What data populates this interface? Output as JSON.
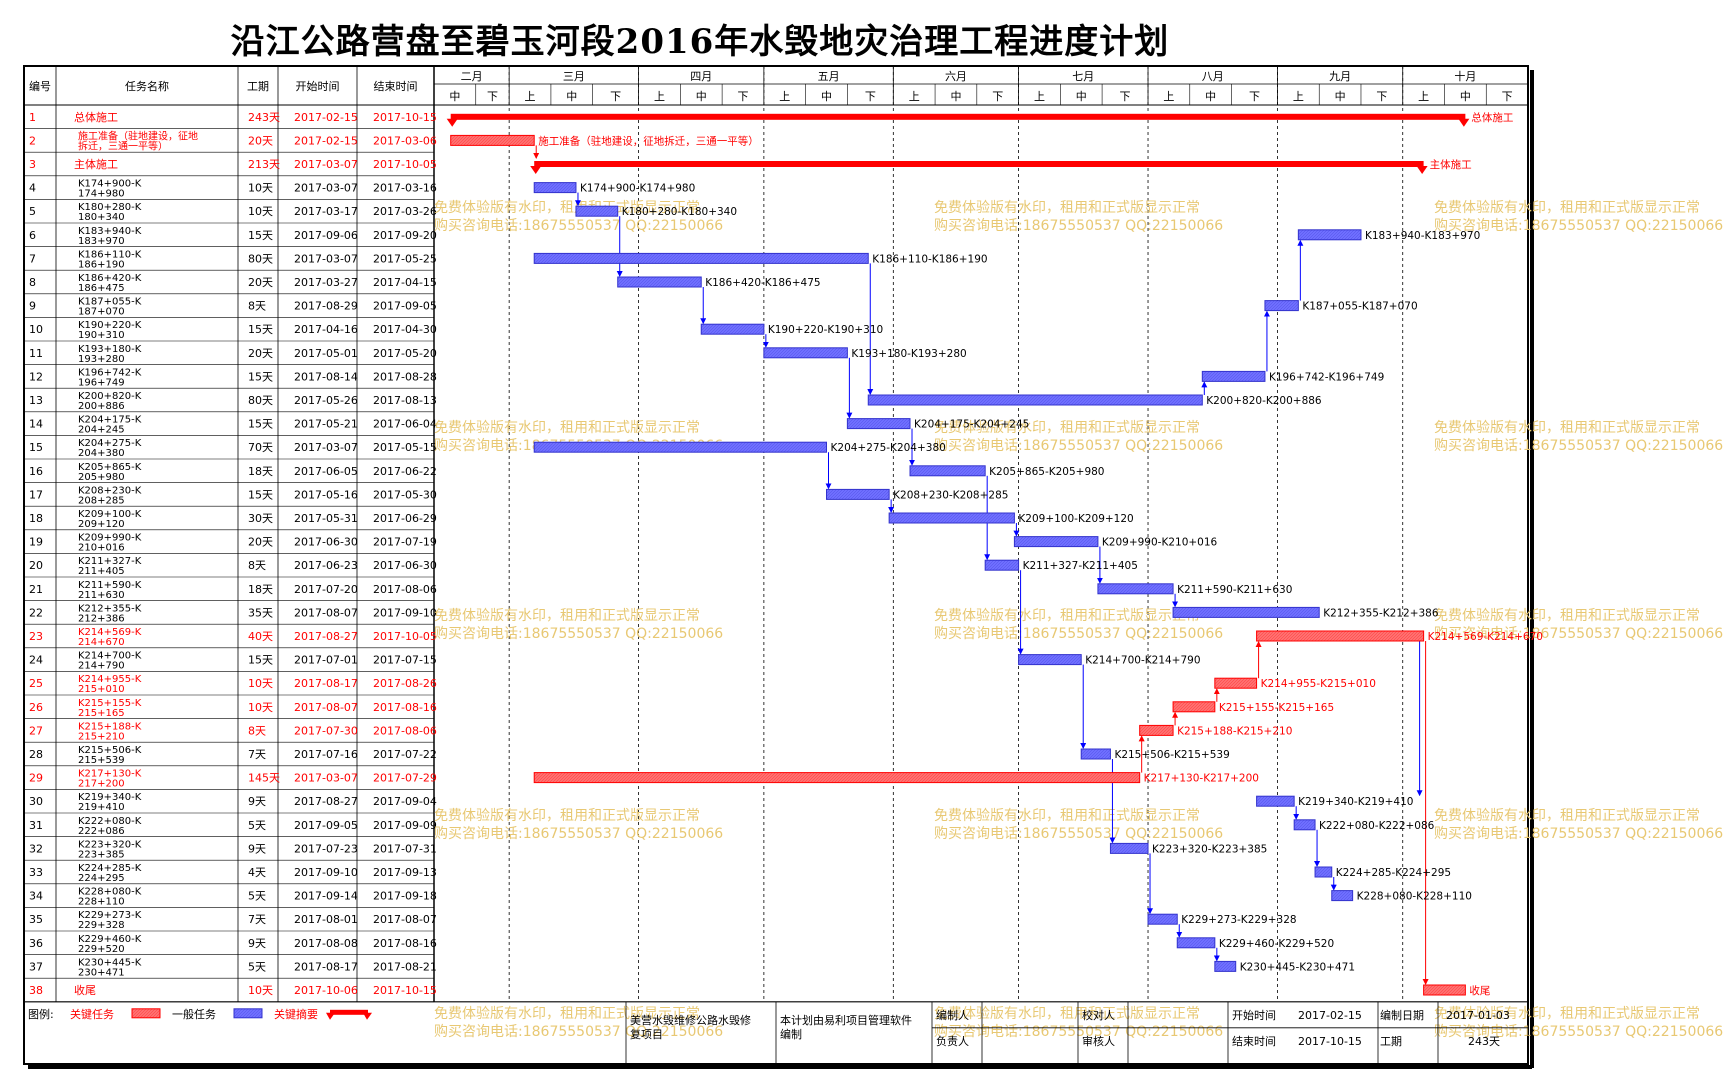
{
  "title": "沿江公路营盘至碧玉河段2016年水毁地灾治理工程进度计划",
  "headers": {
    "id": "编号",
    "name": "任务名称",
    "duration": "工期",
    "start": "开始时间",
    "end": "结束时间"
  },
  "months": [
    {
      "name": "二月",
      "thirds": [
        "中",
        "下"
      ]
    },
    {
      "name": "三月",
      "thirds": [
        "上",
        "中",
        "下"
      ]
    },
    {
      "name": "四月",
      "thirds": [
        "上",
        "中",
        "下"
      ]
    },
    {
      "name": "五月",
      "thirds": [
        "上",
        "中",
        "下"
      ]
    },
    {
      "name": "六月",
      "thirds": [
        "上",
        "中",
        "下"
      ]
    },
    {
      "name": "七月",
      "thirds": [
        "上",
        "中",
        "下"
      ]
    },
    {
      "name": "八月",
      "thirds": [
        "上",
        "中",
        "下"
      ]
    },
    {
      "name": "九月",
      "thirds": [
        "上",
        "中",
        "下"
      ]
    },
    {
      "name": "十月",
      "thirds": [
        "上",
        "中",
        "下"
      ]
    }
  ],
  "colors": {
    "critical": "#ff0000",
    "critical_fill": "#ff7070",
    "normal": "#3333cc",
    "normal_fill": "#6f6fff",
    "summary": "#ff0000",
    "link": "#0000ff",
    "watermark": "#e8c873"
  },
  "chart_data": {
    "type": "gantt",
    "x_range": [
      "2017-02-11",
      "2017-10-31"
    ],
    "tasks": [
      {
        "id": "1",
        "name": "总体施工",
        "duration": "243天",
        "start": "2017-02-15",
        "end": "2017-10-15",
        "kind": "summary",
        "label": "总体施工"
      },
      {
        "id": "2",
        "name": "施工准备（驻地建设，征地拆迁，三通一平等）",
        "duration": "20天",
        "start": "2017-02-15",
        "end": "2017-03-06",
        "kind": "critical",
        "label": "施工准备（驻地建设，征地拆迁，三通一平等）"
      },
      {
        "id": "3",
        "name": "主体施工",
        "duration": "213天",
        "start": "2017-03-07",
        "end": "2017-10-05",
        "kind": "summary",
        "label": "主体施工"
      },
      {
        "id": "4",
        "name": "K174+900-K174+980",
        "duration": "10天",
        "start": "2017-03-07",
        "end": "2017-03-16",
        "kind": "normal",
        "label": "K174+900-K174+980"
      },
      {
        "id": "5",
        "name": "K180+280-K180+340",
        "duration": "10天",
        "start": "2017-03-17",
        "end": "2017-03-26",
        "kind": "normal",
        "label": "K180+280-K180+340"
      },
      {
        "id": "6",
        "name": "K183+940-K183+970",
        "duration": "15天",
        "start": "2017-09-06",
        "end": "2017-09-20",
        "kind": "normal",
        "label": "K183+940-K183+970"
      },
      {
        "id": "7",
        "name": "K186+110-K186+190",
        "duration": "80天",
        "start": "2017-03-07",
        "end": "2017-05-25",
        "kind": "normal",
        "label": "K186+110-K186+190"
      },
      {
        "id": "8",
        "name": "K186+420-K186+475",
        "duration": "20天",
        "start": "2017-03-27",
        "end": "2017-04-15",
        "kind": "normal",
        "label": "K186+420-K186+475"
      },
      {
        "id": "9",
        "name": "K187+055-K187+070",
        "duration": "8天",
        "start": "2017-08-29",
        "end": "2017-09-05",
        "kind": "normal",
        "label": "K187+055-K187+070"
      },
      {
        "id": "10",
        "name": "K190+220-K190+310",
        "duration": "15天",
        "start": "2017-04-16",
        "end": "2017-04-30",
        "kind": "normal",
        "label": "K190+220-K190+310"
      },
      {
        "id": "11",
        "name": "K193+180-K193+280",
        "duration": "20天",
        "start": "2017-05-01",
        "end": "2017-05-20",
        "kind": "normal",
        "label": "K193+180-K193+280"
      },
      {
        "id": "12",
        "name": "K196+742-K196+749",
        "duration": "15天",
        "start": "2017-08-14",
        "end": "2017-08-28",
        "kind": "normal",
        "label": "K196+742-K196+749"
      },
      {
        "id": "13",
        "name": "K200+820-K200+886",
        "duration": "80天",
        "start": "2017-05-26",
        "end": "2017-08-13",
        "kind": "normal",
        "label": "K200+820-K200+886"
      },
      {
        "id": "14",
        "name": "K204+175-K204+245",
        "duration": "15天",
        "start": "2017-05-21",
        "end": "2017-06-04",
        "kind": "normal",
        "label": "K204+175-K204+245"
      },
      {
        "id": "15",
        "name": "K204+275-K204+380",
        "duration": "70天",
        "start": "2017-03-07",
        "end": "2017-05-15",
        "kind": "normal",
        "label": "K204+275-K204+380"
      },
      {
        "id": "16",
        "name": "K205+865-K205+980",
        "duration": "18天",
        "start": "2017-06-05",
        "end": "2017-06-22",
        "kind": "normal",
        "label": "K205+865-K205+980"
      },
      {
        "id": "17",
        "name": "K208+230-K208+285",
        "duration": "15天",
        "start": "2017-05-16",
        "end": "2017-05-30",
        "kind": "normal",
        "label": "K208+230-K208+285"
      },
      {
        "id": "18",
        "name": "K209+100-K209+120",
        "duration": "30天",
        "start": "2017-05-31",
        "end": "2017-06-29",
        "kind": "normal",
        "label": "K209+100-K209+120"
      },
      {
        "id": "19",
        "name": "K209+990-K210+016",
        "duration": "20天",
        "start": "2017-06-30",
        "end": "2017-07-19",
        "kind": "normal",
        "label": "K209+990-K210+016"
      },
      {
        "id": "20",
        "name": "K211+327-K211+405",
        "duration": "8天",
        "start": "2017-06-23",
        "end": "2017-06-30",
        "kind": "normal",
        "label": "K211+327-K211+405"
      },
      {
        "id": "21",
        "name": "K211+590-K211+630",
        "duration": "18天",
        "start": "2017-07-20",
        "end": "2017-08-06",
        "kind": "normal",
        "label": "K211+590-K211+630"
      },
      {
        "id": "22",
        "name": "K212+355-K212+386",
        "duration": "35天",
        "start": "2017-08-07",
        "end": "2017-09-10",
        "kind": "normal",
        "label": "K212+355-K212+386"
      },
      {
        "id": "23",
        "name": "K214+569-K214+670",
        "duration": "40天",
        "start": "2017-08-27",
        "end": "2017-10-05",
        "kind": "critical",
        "label": "K214+569-K214+670"
      },
      {
        "id": "24",
        "name": "K214+700-K214+790",
        "duration": "15天",
        "start": "2017-07-01",
        "end": "2017-07-15",
        "kind": "normal",
        "label": "K214+700-K214+790"
      },
      {
        "id": "25",
        "name": "K214+955-K215+010",
        "duration": "10天",
        "start": "2017-08-17",
        "end": "2017-08-26",
        "kind": "critical",
        "label": "K214+955-K215+010"
      },
      {
        "id": "26",
        "name": "K215+155-K215+165",
        "duration": "10天",
        "start": "2017-08-07",
        "end": "2017-08-16",
        "kind": "critical",
        "label": "K215+155-K215+165"
      },
      {
        "id": "27",
        "name": "K215+188-K215+210",
        "duration": "8天",
        "start": "2017-07-30",
        "end": "2017-08-06",
        "kind": "critical",
        "label": "K215+188-K215+210"
      },
      {
        "id": "28",
        "name": "K215+506-K215+539",
        "duration": "7天",
        "start": "2017-07-16",
        "end": "2017-07-22",
        "kind": "normal",
        "label": "K215+506-K215+539"
      },
      {
        "id": "29",
        "name": "K217+130-K217+200",
        "duration": "145天",
        "start": "2017-03-07",
        "end": "2017-07-29",
        "kind": "critical",
        "label": "K217+130-K217+200"
      },
      {
        "id": "30",
        "name": "K219+340-K219+410",
        "duration": "9天",
        "start": "2017-08-27",
        "end": "2017-09-04",
        "kind": "normal",
        "label": "K219+340-K219+410"
      },
      {
        "id": "31",
        "name": "K222+080-K222+086",
        "duration": "5天",
        "start": "2017-09-05",
        "end": "2017-09-09",
        "kind": "normal",
        "label": "K222+080-K222+086"
      },
      {
        "id": "32",
        "name": "K223+320-K223+385",
        "duration": "9天",
        "start": "2017-07-23",
        "end": "2017-07-31",
        "kind": "normal",
        "label": "K223+320-K223+385"
      },
      {
        "id": "33",
        "name": "K224+285-K224+295",
        "duration": "4天",
        "start": "2017-09-10",
        "end": "2017-09-13",
        "kind": "normal",
        "label": "K224+285-K224+295"
      },
      {
        "id": "34",
        "name": "K228+080-K228+110",
        "duration": "5天",
        "start": "2017-09-14",
        "end": "2017-09-18",
        "kind": "normal",
        "label": "K228+080-K228+110"
      },
      {
        "id": "35",
        "name": "K229+273-K229+328",
        "duration": "7天",
        "start": "2017-08-01",
        "end": "2017-08-07",
        "kind": "normal",
        "label": "K229+273-K229+328"
      },
      {
        "id": "36",
        "name": "K229+460-K229+520",
        "duration": "9天",
        "start": "2017-08-08",
        "end": "2017-08-16",
        "kind": "normal",
        "label": "K229+460-K229+520"
      },
      {
        "id": "37",
        "name": "K230+445-K230+471",
        "duration": "5天",
        "start": "2017-08-17",
        "end": "2017-08-21",
        "kind": "normal",
        "label": "K230+445-K230+471"
      },
      {
        "id": "38",
        "name": "收尾",
        "duration": "10天",
        "start": "2017-10-06",
        "end": "2017-10-15",
        "kind": "critical",
        "label": "收尾"
      }
    ],
    "links": [
      [
        4,
        5
      ],
      [
        5,
        8
      ],
      [
        8,
        10
      ],
      [
        10,
        11
      ],
      [
        11,
        14
      ],
      [
        15,
        17
      ],
      [
        17,
        18
      ],
      [
        14,
        16
      ],
      [
        16,
        20
      ],
      [
        18,
        19
      ],
      [
        20,
        24
      ],
      [
        7,
        13
      ],
      [
        13,
        12
      ],
      [
        12,
        9
      ],
      [
        9,
        6
      ],
      [
        19,
        21
      ],
      [
        21,
        22
      ],
      [
        24,
        28
      ],
      [
        28,
        32
      ],
      [
        32,
        35
      ],
      [
        35,
        36
      ],
      [
        36,
        37
      ],
      [
        29,
        27
      ],
      [
        27,
        26
      ],
      [
        26,
        25
      ],
      [
        25,
        23
      ],
      [
        23,
        38
      ],
      [
        30,
        31
      ],
      [
        31,
        33
      ],
      [
        33,
        34
      ],
      [
        23,
        30
      ],
      [
        2,
        3
      ]
    ]
  },
  "legend": {
    "label": "图例:",
    "critical": "关键任务",
    "normal": "一般任务",
    "summary": "关键摘要"
  },
  "footer": {
    "project": "美誉水毁维修公路水毁修复项目",
    "software": "本计划由易利项目管理软件编制",
    "compiler_label": "编制人",
    "reviewer_label": "校对人",
    "owner_label": "负责人",
    "approver_label": "审核人",
    "start_label": "开始时间",
    "start_value": "2017-02-15",
    "end_label": "结束时间",
    "end_value": "2017-10-15",
    "date_label": "编制日期",
    "date_value": "2017-01-03",
    "period_label": "工期",
    "period_value": "243天"
  },
  "watermark": {
    "line1": "免费体验版有水印，租用和正式版显示正常",
    "line2": "购买咨询电话:18675550537 QQ:22150066"
  }
}
